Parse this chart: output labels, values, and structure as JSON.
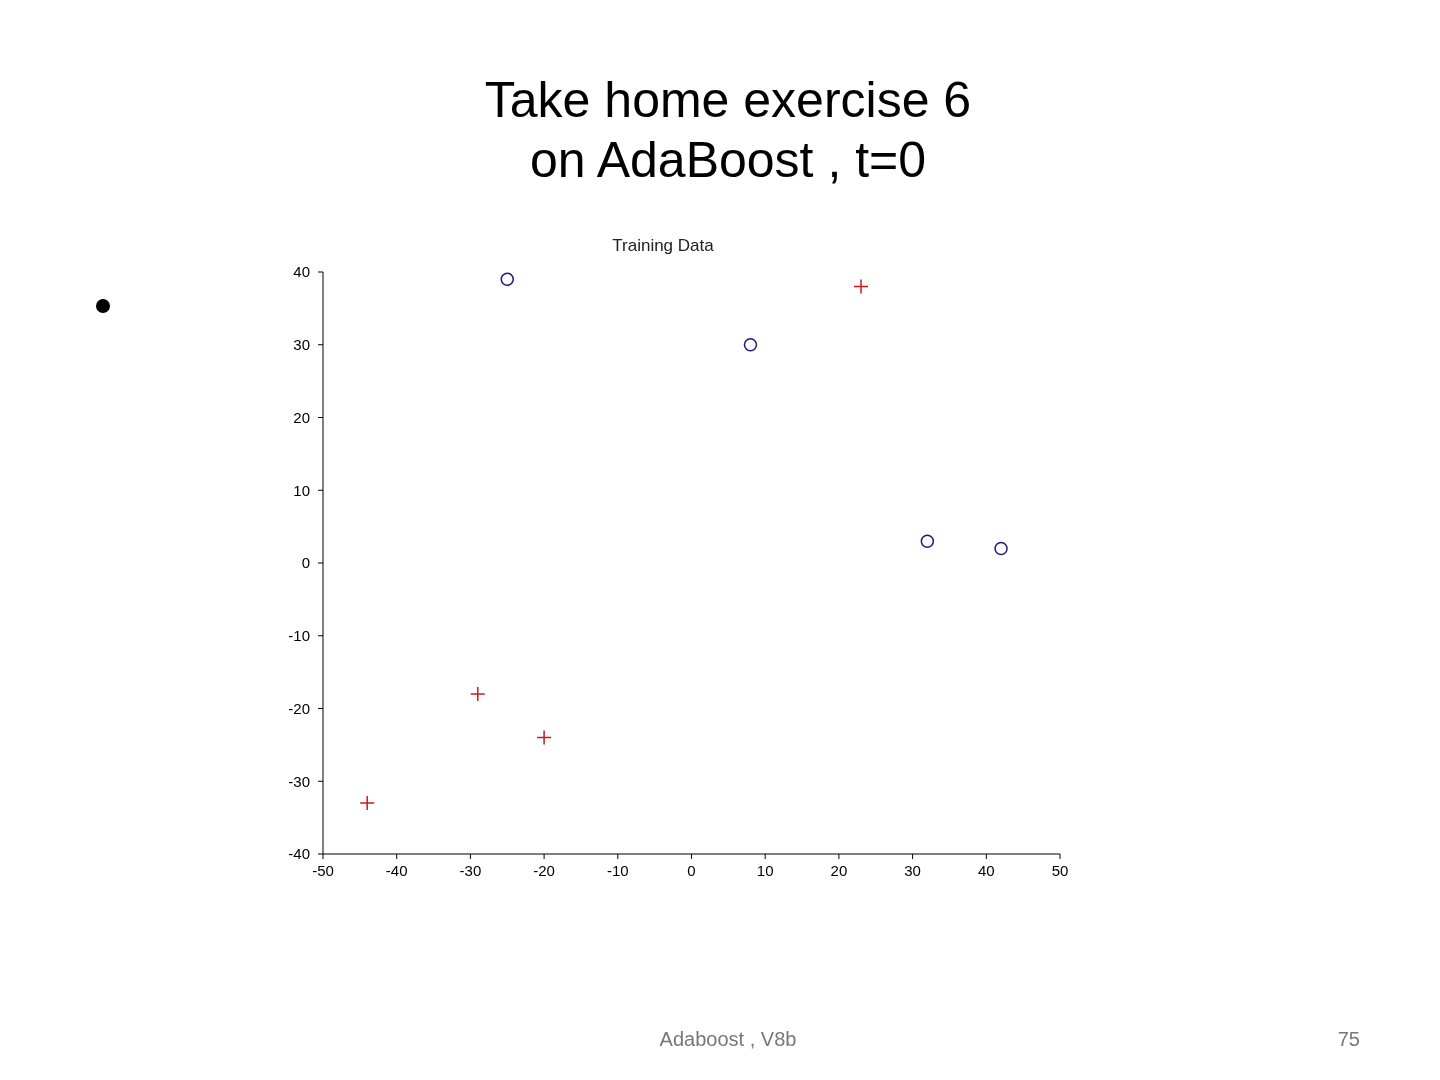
{
  "chart_data": {
    "type": "scatter",
    "title": "Take home exercise 6 on AdaBoost , t=0",
    "subtitle": "Training Data",
    "series": [
      {
        "color": "#1a1a80",
        "marker": "circle",
        "x": [
          -25,
          8,
          32,
          42
        ],
        "values": [
          39,
          30,
          3,
          2
        ]
      },
      {
        "color": "#cc1a1a",
        "marker": "cross",
        "x": [
          23,
          -29,
          -20,
          -44
        ],
        "values": [
          38,
          -18,
          -24,
          -33
        ]
      }
    ],
    "xlim": [
      -50,
      50
    ],
    "xticks": [
      -50,
      -40,
      -30,
      -20,
      -10,
      0,
      10,
      20,
      30,
      40,
      50
    ],
    "ylim": [
      -40,
      40
    ],
    "yticks": [
      -40,
      -30,
      -20,
      -10,
      0,
      10,
      20,
      30,
      40
    ],
    "grid": false,
    "legend": false,
    "annotations": [
      "Adaboost , V8b",
      "75"
    ]
  }
}
